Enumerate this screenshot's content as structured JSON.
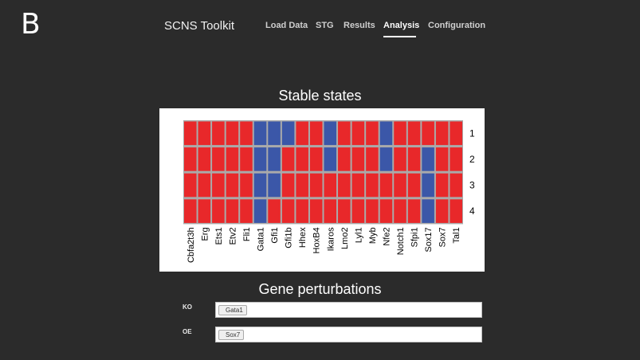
{
  "panel_letter": "B",
  "navbar": {
    "brand": "SCNS Toolkit",
    "items": [
      {
        "label": "Load Data",
        "active": false
      },
      {
        "label": "STG",
        "active": false
      },
      {
        "label": "Results",
        "active": false
      },
      {
        "label": "Analysis",
        "active": true
      },
      {
        "label": "Configuration",
        "active": false
      }
    ]
  },
  "stable_states": {
    "title": "Stable states",
    "colors": {
      "on": "#e8282a",
      "off": "#3b57a8",
      "grid": "#aaaaaa"
    },
    "genes": [
      "Cbfa2t3h",
      "Erg",
      "Ets1",
      "Etv2",
      "Fli1",
      "Gata1",
      "Gfi1",
      "Gfi1b",
      "Hhex",
      "HoxB4",
      "Ikaros",
      "Lmo2",
      "Lyl1",
      "Myb",
      "Nfe2",
      "Notch1",
      "Sfpi1",
      "Sox17",
      "Sox7",
      "Tal1"
    ],
    "states": [
      {
        "label": "1",
        "values": [
          1,
          1,
          1,
          1,
          1,
          0,
          0,
          0,
          1,
          1,
          0,
          1,
          1,
          1,
          0,
          1,
          1,
          1,
          1,
          1
        ]
      },
      {
        "label": "2",
        "values": [
          1,
          1,
          1,
          1,
          1,
          0,
          0,
          1,
          1,
          1,
          0,
          1,
          1,
          1,
          0,
          1,
          1,
          0,
          1,
          1
        ]
      },
      {
        "label": "3",
        "values": [
          1,
          1,
          1,
          1,
          1,
          0,
          0,
          1,
          1,
          1,
          1,
          1,
          1,
          1,
          1,
          1,
          1,
          0,
          1,
          1
        ]
      },
      {
        "label": "4",
        "values": [
          1,
          1,
          1,
          1,
          1,
          0,
          1,
          1,
          1,
          1,
          1,
          1,
          1,
          1,
          1,
          1,
          1,
          0,
          1,
          1
        ]
      }
    ]
  },
  "gene_perturbations": {
    "title": "Gene perturbations",
    "ko": {
      "label": "KO",
      "tag": "Gata1"
    },
    "oe": {
      "label": "OE",
      "tag": "Sox7"
    }
  }
}
